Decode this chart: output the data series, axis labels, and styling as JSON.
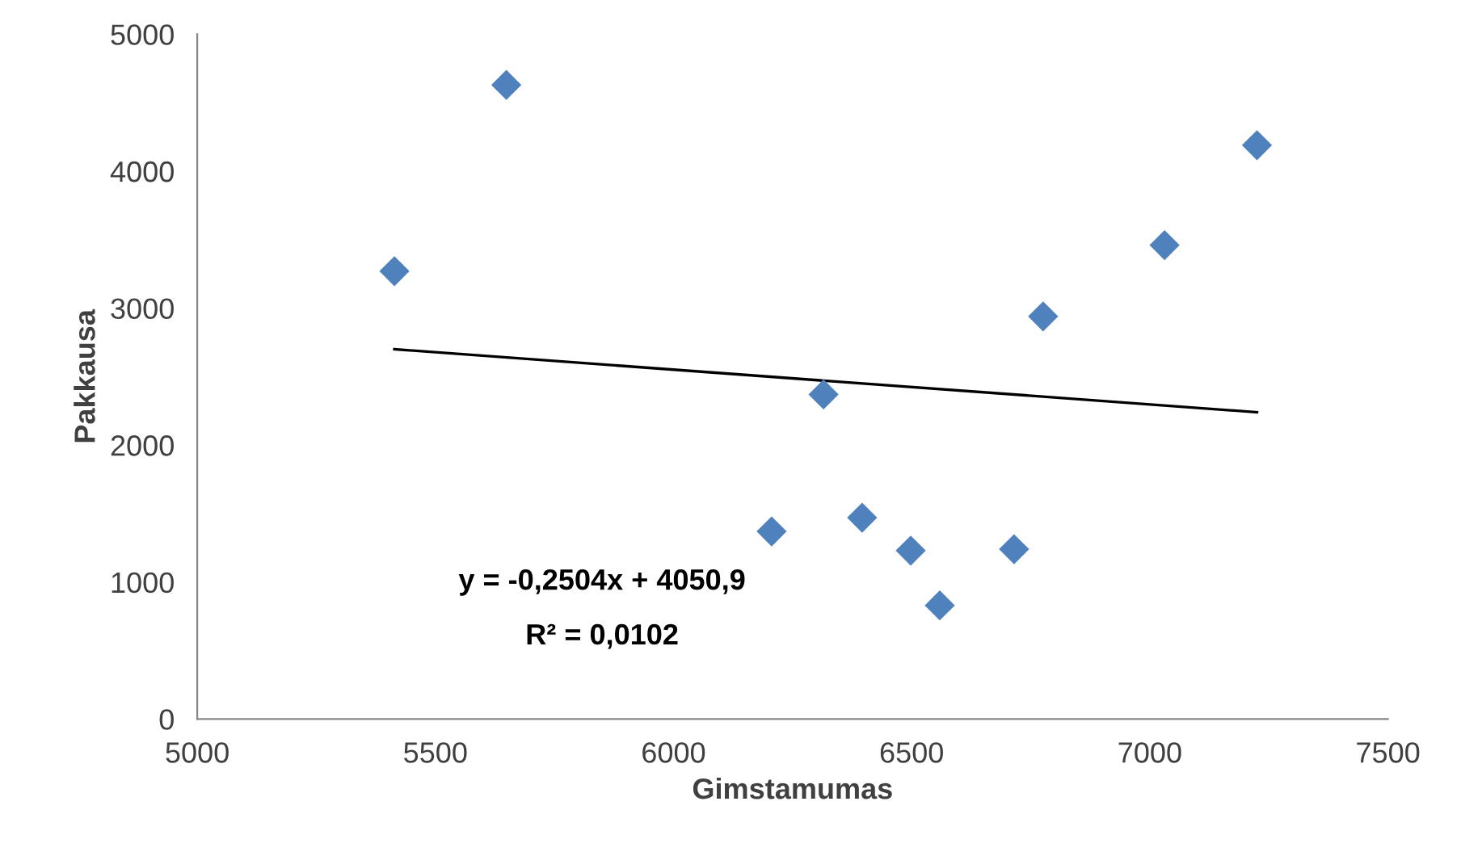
{
  "chart_data": {
    "type": "scatter",
    "xlabel": "Gimstamumas",
    "ylabel": "Pakkausa",
    "xlim": [
      5000,
      7500
    ],
    "xticks": [
      5000,
      5500,
      6000,
      6500,
      7000,
      7500
    ],
    "ylim": [
      0,
      5000
    ],
    "yticks": [
      0,
      1000,
      2000,
      3000,
      4000,
      5000
    ],
    "grid": false,
    "legend": false,
    "marker": "diamond",
    "series": [
      {
        "color": "#4f81bd",
        "x": [
          5414,
          5649,
          6206,
          6315,
          6396,
          6498,
          6559,
          6715,
          6776,
          7031,
          7225
        ],
        "values": [
          3270,
          4630,
          1370,
          2370,
          1470,
          1230,
          830,
          1240,
          2940,
          3460,
          4190
        ]
      },
      {
        "type": "line",
        "color": "#000000",
        "line_style": "solid",
        "marker": "none",
        "x": [
          5414,
          7225
        ],
        "values": [
          2700,
          2240
        ]
      }
    ],
    "annotations": [
      "y = -0,2504x + 4050,9",
      "R² = 0,0102"
    ]
  }
}
